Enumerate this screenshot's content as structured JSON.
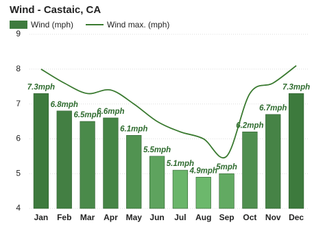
{
  "chart_data": {
    "type": "combo",
    "title": "Wind - Castaic, CA",
    "categories": [
      "Jan",
      "Feb",
      "Mar",
      "Apr",
      "May",
      "Jun",
      "Jul",
      "Aug",
      "Sep",
      "Oct",
      "Nov",
      "Dec"
    ],
    "series": [
      {
        "name": "Wind (mph)",
        "type": "bar",
        "color": "#3e7b3e",
        "colors": [
          "#3d7a3d",
          "#437f43",
          "#4a8a4a",
          "#458545",
          "#519351",
          "#5ea35e",
          "#6ab56a",
          "#6cb86c",
          "#62aa62",
          "#4f8f4f",
          "#468346",
          "#3d7a3d"
        ],
        "values": [
          7.3,
          6.8,
          6.5,
          6.6,
          6.1,
          5.5,
          5.1,
          4.9,
          5,
          6.2,
          6.7,
          7.3
        ],
        "value_labels": [
          "7.3mph",
          "6.8mph",
          "6.5mph",
          "6.6mph",
          "6.1mph",
          "5.5mph",
          "5.1mph",
          "4.9mph",
          "5mph",
          "6.2mph",
          "6.7mph",
          "7.3mph"
        ]
      },
      {
        "name": "Wind max. (mph)",
        "type": "line",
        "color": "#3a7a30",
        "values": [
          8.0,
          7.6,
          7.3,
          7.4,
          7.0,
          6.5,
          6.2,
          6.0,
          5.5,
          7.3,
          7.6,
          8.1
        ]
      }
    ],
    "ylim": [
      4,
      9
    ],
    "yticks": [
      4,
      5,
      6,
      7,
      8,
      9
    ],
    "grid": true
  }
}
